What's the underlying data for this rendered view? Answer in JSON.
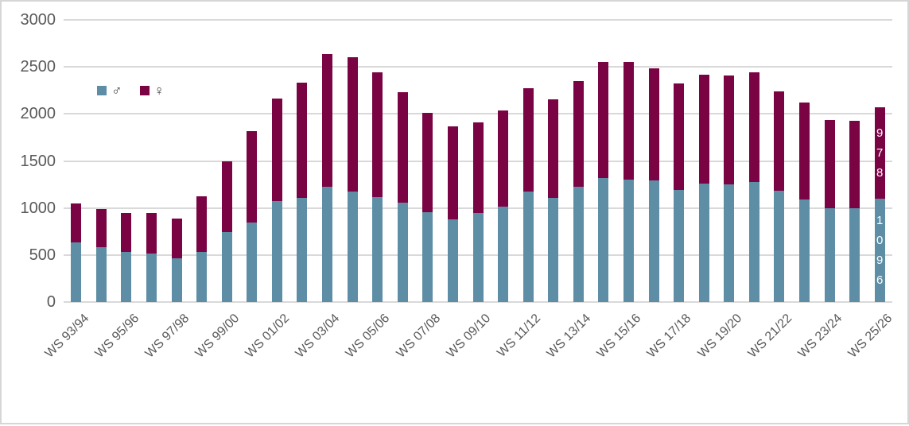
{
  "chart_data": {
    "type": "bar",
    "stacked": true,
    "title": "",
    "xlabel": "",
    "ylabel": "",
    "ylim": [
      0,
      3000
    ],
    "ytick_interval": 500,
    "yticks": [
      "3000",
      "2500",
      "2000",
      "1500",
      "1000",
      "500",
      "0"
    ],
    "grid": "horizontal",
    "legend_position": "inside-top-left",
    "x_label_every": 2,
    "categories": [
      "WS 93/94",
      "WS 94/95",
      "WS 95/96",
      "WS 96/97",
      "WS 97/98",
      "WS 98/99",
      "WS 99/00",
      "WS 00/01",
      "WS 01/02",
      "WS 02/03",
      "WS 03/04",
      "WS 04/05",
      "WS 05/06",
      "WS 06/07",
      "WS 07/08",
      "WS 08/09",
      "WS 09/10",
      "WS 10/11",
      "WS 11/12",
      "WS 12/13",
      "WS 13/14",
      "WS 14/15",
      "WS 15/16",
      "WS 16/17",
      "WS 17/18",
      "WS 18/19",
      "WS 19/20",
      "WS 20/21",
      "WS 21/22",
      "WS 22/23",
      "WS 23/24",
      "WS 24/25",
      "WS 25/26"
    ],
    "series": [
      {
        "name": "♂",
        "color": "#5d8ea5",
        "values": [
          630,
          585,
          535,
          515,
          465,
          535,
          740,
          845,
          1070,
          1110,
          1225,
          1175,
          1115,
          1055,
          955,
          880,
          945,
          1010,
          1175,
          1105,
          1225,
          1315,
          1300,
          1290,
          1195,
          1260,
          1255,
          1275,
          1180,
          1090,
          1000,
          1000,
          1096
        ]
      },
      {
        "name": "♀",
        "color": "#7a0344",
        "values": [
          420,
          405,
          415,
          435,
          425,
          590,
          760,
          970,
          1095,
          1225,
          1415,
          1425,
          1325,
          1175,
          1055,
          985,
          965,
          1025,
          1095,
          1050,
          1125,
          1235,
          1250,
          1195,
          1125,
          1160,
          1155,
          1165,
          1060,
          1030,
          935,
          930,
          978
        ]
      }
    ],
    "data_labels": [
      {
        "category": "WS 25/26",
        "series": "♂",
        "text": "1096"
      },
      {
        "category": "WS 25/26",
        "series": "♀",
        "text": "978"
      }
    ]
  },
  "legend": {
    "items": [
      {
        "label": "♂",
        "color": "#5d8ea5"
      },
      {
        "label": "♀",
        "color": "#7a0344"
      }
    ]
  },
  "colors": {
    "male": "#5d8ea5",
    "female": "#7a0344",
    "gridline": "#d9d9d9",
    "axis_text": "#595959",
    "frame_border": "#d6d6d6",
    "background": "#ffffff",
    "data_label_text": "#ffffff"
  }
}
